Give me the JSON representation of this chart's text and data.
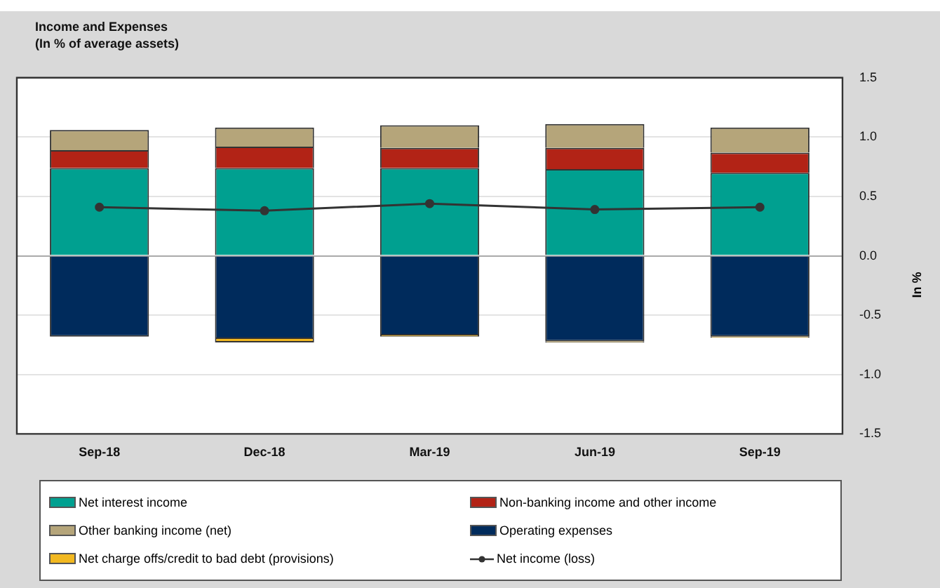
{
  "chart_data": {
    "type": "bar",
    "title": "Income and Expenses",
    "subtitle": "(In % of average assets)",
    "ylabel": "In %",
    "stacked": true,
    "categories": [
      "Sep-18",
      "Dec-18",
      "Mar-19",
      "Jun-19",
      "Sep-19"
    ],
    "series": [
      {
        "name": "Net interest income",
        "color": "#00a090",
        "values": [
          0.74,
          0.74,
          0.74,
          0.73,
          0.7
        ]
      },
      {
        "name": "Non-banking income and other income",
        "color": "#b22316",
        "values": [
          0.15,
          0.18,
          0.17,
          0.18,
          0.17
        ]
      },
      {
        "name": "Other banking income (net)",
        "color": "#b5a57a",
        "values": [
          0.17,
          0.16,
          0.19,
          0.2,
          0.21
        ]
      },
      {
        "name": "Operating expenses",
        "color": "#002b5c",
        "values": [
          -0.68,
          -0.7,
          -0.67,
          -0.72,
          -0.68
        ]
      },
      {
        "name": "Net charge offs/credit to bad debt (provisions)",
        "color": "#f2b820",
        "values": [
          0,
          -0.03,
          -0.01,
          -0.01,
          -0.01
        ]
      },
      {
        "name": "Net income (loss)",
        "type": "line",
        "color": "#333333",
        "marker": "circle",
        "values": [
          0.41,
          0.38,
          0.44,
          0.39,
          0.41
        ]
      }
    ],
    "ylim": [
      -1.5,
      1.5
    ],
    "yticks": [
      {
        "value": -1.5,
        "label": "-1.5"
      },
      {
        "value": -1,
        "label": "-1.0"
      },
      {
        "value": -0.5,
        "label": "-0.5"
      },
      {
        "value": 0,
        "label": "0.0"
      },
      {
        "value": 0.5,
        "label": "0.5"
      },
      {
        "value": 1,
        "label": "1.0"
      },
      {
        "value": 1.5,
        "label": "1.5"
      }
    ],
    "grid": "y",
    "legend": "bottom"
  }
}
